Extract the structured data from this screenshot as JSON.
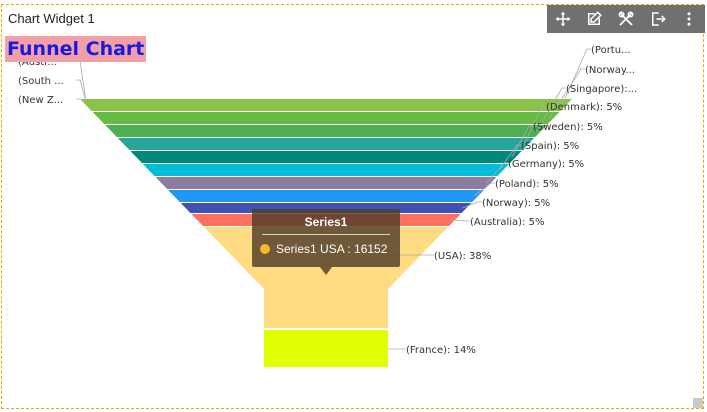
{
  "widget": {
    "title": "Chart Widget 1"
  },
  "toolbar": {
    "icons": [
      "move-icon",
      "edit-icon",
      "tools-icon",
      "export-icon",
      "more-vertical-icon"
    ]
  },
  "chart_data": {
    "type": "funnel",
    "title": "Funnel Chart",
    "series_name": "Series1",
    "segments": [
      {
        "label": "(Portu...",
        "color": "#8bc34a",
        "pct": null
      },
      {
        "label": "(Norway...",
        "color": "#66bb44",
        "pct": null
      },
      {
        "label": "(Singapore):...",
        "color": "#4caf50",
        "pct": null
      },
      {
        "label": "(Denmark): 5%",
        "color": "#26a69a",
        "pct": 5
      },
      {
        "label": "(Sweden): 5%",
        "color": "#00897b",
        "pct": 5
      },
      {
        "label": "(Spain): 5%",
        "color": "#00bcd4",
        "pct": 5
      },
      {
        "label": "(Germany): 5%",
        "color": "#8d7ba0",
        "pct": 5
      },
      {
        "label": "(Poland): 5%",
        "color": "#2196f3",
        "pct": 5
      },
      {
        "label": "(Norway): 5%",
        "color": "#3f51b5",
        "pct": 5
      },
      {
        "label": "(Australia): 5%",
        "color": "#ff7060",
        "pct": 5
      },
      {
        "label": "(USA): 38%",
        "color": "#ffdc82",
        "pct": 38
      },
      {
        "label": "(France): 14%",
        "color": "#e0ff00",
        "pct": 14
      }
    ],
    "left_labels": [
      "(Austr...",
      "(South ...",
      "(New Z..."
    ],
    "tooltip": {
      "title": "Series1",
      "text": "Series1 USA : 16152",
      "dot_color": "#f6b82c"
    }
  }
}
